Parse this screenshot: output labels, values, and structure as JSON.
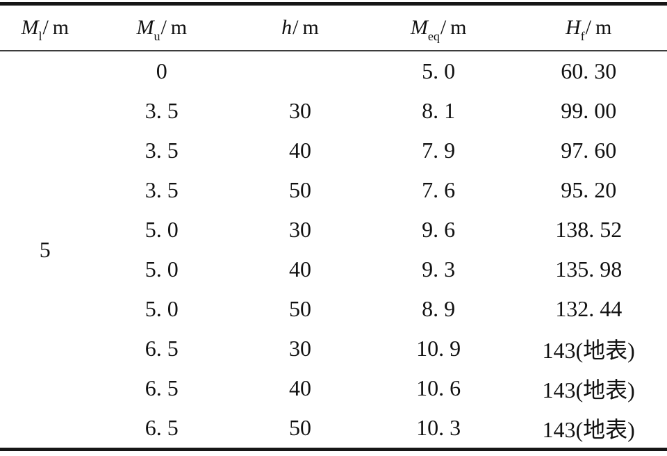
{
  "table": {
    "columns": [
      {
        "base": "M",
        "sub": "l",
        "unit": "/ m"
      },
      {
        "base": "M",
        "sub": "u",
        "unit": "/ m"
      },
      {
        "base": "h",
        "sub": "",
        "unit": "/ m"
      },
      {
        "base": "M",
        "sub": "eq",
        "unit": "/ m"
      },
      {
        "base": "H",
        "sub": "f",
        "unit": "/ m"
      }
    ],
    "merged_cell": {
      "column_index": 0,
      "value": "5",
      "rowspan": 10
    },
    "rows": [
      [
        "0",
        "",
        "5. 0",
        "60. 30"
      ],
      [
        "3. 5",
        "30",
        "8. 1",
        "99. 00"
      ],
      [
        "3. 5",
        "40",
        "7. 9",
        "97. 60"
      ],
      [
        "3. 5",
        "50",
        "7. 6",
        "95. 20"
      ],
      [
        "5. 0",
        "30",
        "9. 6",
        "138. 52"
      ],
      [
        "5. 0",
        "40",
        "9. 3",
        "135. 98"
      ],
      [
        "5. 0",
        "50",
        "8. 9",
        "132. 44"
      ],
      [
        "6. 5",
        "30",
        "10. 9",
        "143(地表)"
      ],
      [
        "6. 5",
        "40",
        "10. 6",
        "143(地表)"
      ],
      [
        "6. 5",
        "50",
        "10. 3",
        "143(地表)"
      ]
    ]
  },
  "colors": {
    "background": "#ffffff",
    "text": "#111111",
    "thick_rule": "#161616",
    "header_rule": "#3c3c3c"
  }
}
